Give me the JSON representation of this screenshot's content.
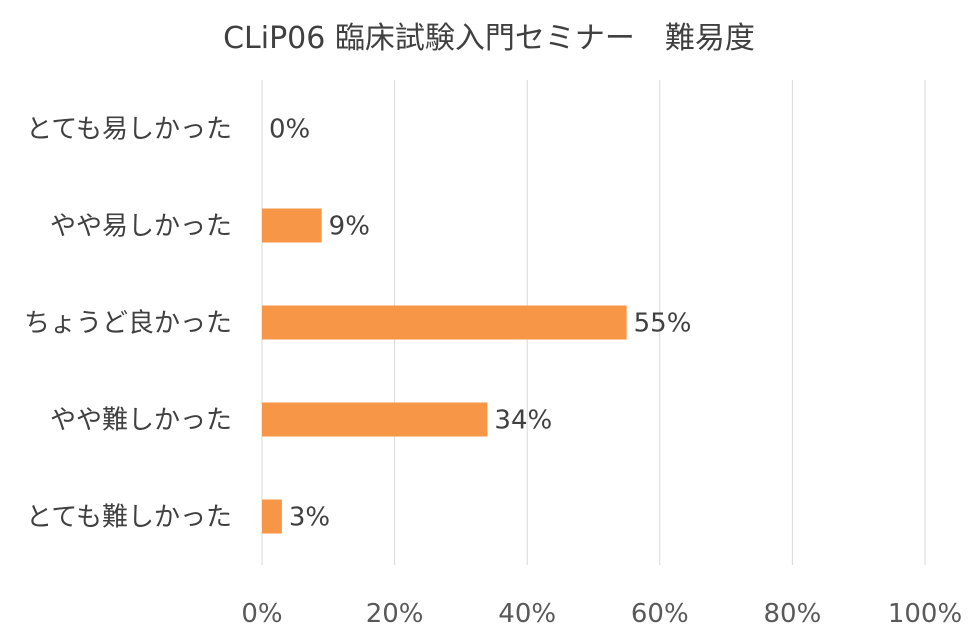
{
  "chart_data": {
    "type": "bar",
    "orientation": "horizontal",
    "title": "CLiP06 臨床試験入門セミナー　難易度",
    "categories": [
      "とても易しかった",
      "やや易しかった",
      "ちょうど良かった",
      "やや難しかった",
      "とても難しかった"
    ],
    "values": [
      0,
      9,
      55,
      34,
      3
    ],
    "data_labels": [
      "0%",
      "9%",
      "55%",
      "34%",
      "3%"
    ],
    "xlim": [
      0,
      100
    ],
    "xticks": [
      0,
      20,
      40,
      60,
      80,
      100
    ],
    "xtick_labels": [
      "0%",
      "20%",
      "40%",
      "60%",
      "80%",
      "100%"
    ],
    "grid": true,
    "legend": "none",
    "bar_color": "#F79646",
    "gridline_color": "#D9D9D9"
  }
}
